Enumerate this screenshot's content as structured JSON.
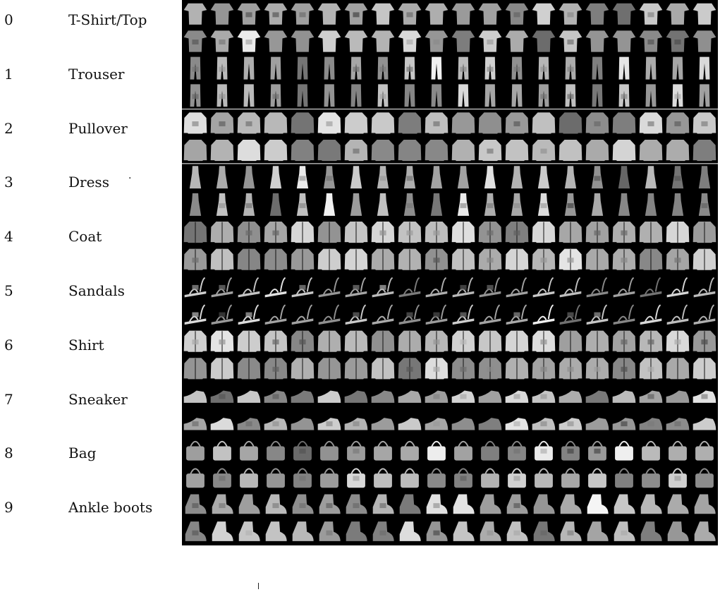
{
  "classes": [
    {
      "index": "0",
      "name": "T-Shirt/Top",
      "icon": "tshirt-icon"
    },
    {
      "index": "1",
      "name": "Trouser",
      "icon": "trouser-icon"
    },
    {
      "index": "2",
      "name": "Pullover",
      "icon": "pullover-icon"
    },
    {
      "index": "3",
      "name": "Dress",
      "icon": "dress-icon"
    },
    {
      "index": "4",
      "name": "Coat",
      "icon": "coat-icon"
    },
    {
      "index": "5",
      "name": "Sandals",
      "icon": "sandal-icon"
    },
    {
      "index": "6",
      "name": "Shirt",
      "icon": "shirt-icon"
    },
    {
      "index": "7",
      "name": "Sneaker",
      "icon": "sneaker-icon"
    },
    {
      "index": "8",
      "name": "Bag",
      "icon": "bag-icon"
    },
    {
      "index": "9",
      "name": "Ankle boots",
      "icon": "ankle-boot-icon"
    }
  ],
  "grid": {
    "rows_per_class": 2,
    "columns": 20,
    "background": "#000000",
    "separator_color": "#ffffff"
  }
}
